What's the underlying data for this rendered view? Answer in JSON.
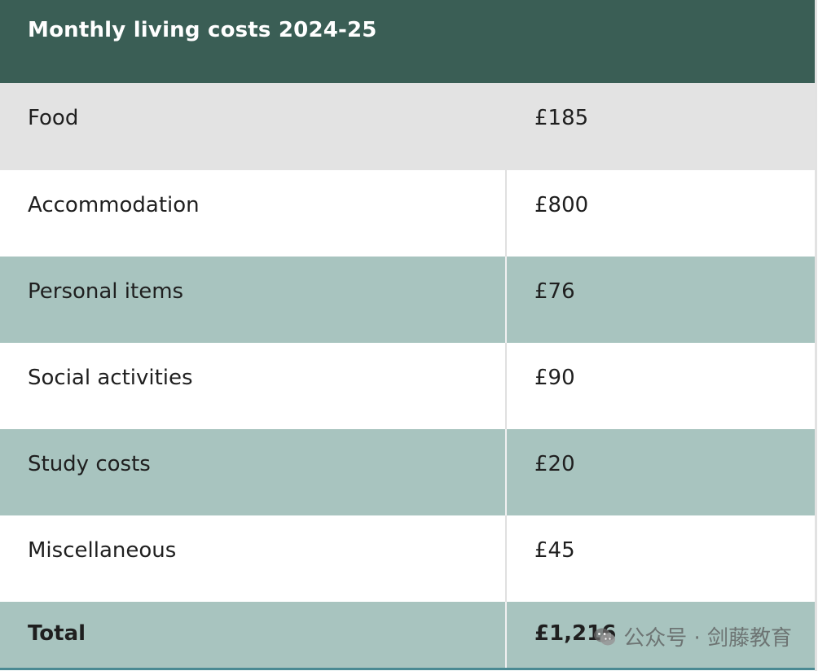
{
  "title": "Monthly living costs 2024-25",
  "rows": [
    {
      "label": "Food",
      "value": "£185"
    },
    {
      "label": "Accommodation",
      "value": "£800"
    },
    {
      "label": "Personal items",
      "value": "£76"
    },
    {
      "label": "Social activities",
      "value": "£90"
    },
    {
      "label": "Study costs",
      "value": "£20"
    },
    {
      "label": "Miscellaneous",
      "value": "£45"
    }
  ],
  "total": {
    "label": "Total",
    "value": "£1,216"
  },
  "watermark": {
    "text": "公众号 · 剑藤教育",
    "icon": "wechat-icon"
  },
  "colors": {
    "header": "#3a5e55",
    "row_gray": "#e3e3e3",
    "row_teal": "#a8c4bf",
    "row_white": "#ffffff"
  }
}
